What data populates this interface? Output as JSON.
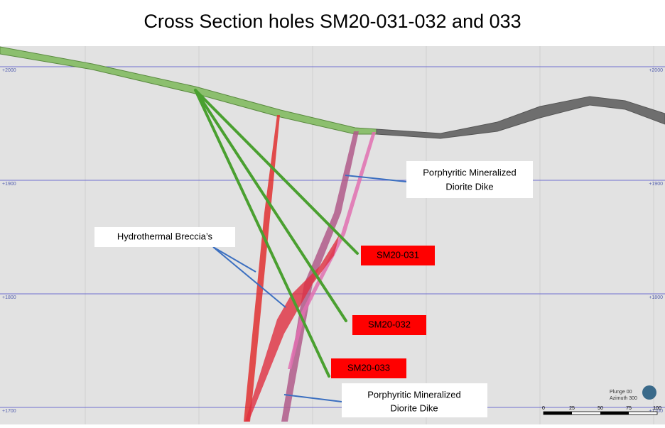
{
  "title": "Cross Section holes SM20-031-032 and 033",
  "elevations": {
    "left": [
      "+2000",
      "+1900",
      "+1800",
      "+1700"
    ],
    "right": [
      "+2000",
      "+1900",
      "+1800",
      "+1700"
    ]
  },
  "callouts": {
    "dike_upper": [
      "Porphyritic Mineralized",
      "Diorite Dike"
    ],
    "breccia": "Hydrothermal Breccia’s",
    "dike_lower": [
      "Porphyritic Mineralized",
      "Diorite Dike"
    ]
  },
  "holes": [
    "SM20-031",
    "SM20-032",
    "SM20-033"
  ],
  "orientation": {
    "plunge": "Plunge 00",
    "azimuth": "Azimuth 300"
  },
  "scale": [
    "0",
    "25",
    "50",
    "75",
    "100"
  ]
}
